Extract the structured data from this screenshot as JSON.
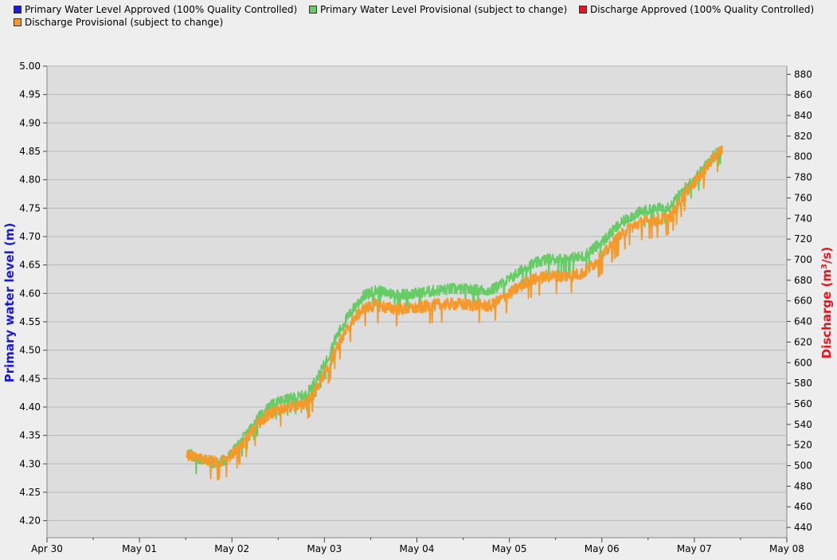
{
  "legend": [
    {
      "label": "Primary Water Level Approved (100% Quality Controlled)",
      "color": "#1a1adc"
    },
    {
      "label": "Primary Water Level Provisional (subject to change)",
      "color": "#66cc66"
    },
    {
      "label": "Discharge Approved (100% Quality Controlled)",
      "color": "#e8141e"
    },
    {
      "label": "Discharge Provisional (subject to change)",
      "color": "#f59a2a"
    }
  ],
  "chart_data": {
    "type": "line",
    "grid": true,
    "plot_background": "#dddddd",
    "y_left": {
      "label": "Primary water level (m)",
      "color": "#1a1adc",
      "range": [
        4.17,
        5.0
      ],
      "ticks": [
        "4.20",
        "4.25",
        "4.30",
        "4.35",
        "4.40",
        "4.45",
        "4.50",
        "4.55",
        "4.60",
        "4.65",
        "4.70",
        "4.75",
        "4.80",
        "4.85",
        "4.90",
        "4.95",
        "5.00"
      ]
    },
    "y_right": {
      "label_prefix": "Discharge (m",
      "label_sup": "3",
      "label_suffix": "/s)",
      "color": "#e8141e",
      "range": [
        430,
        888
      ],
      "ticks": [
        "440",
        "460",
        "480",
        "500",
        "520",
        "540",
        "560",
        "580",
        "600",
        "620",
        "640",
        "660",
        "680",
        "700",
        "720",
        "740",
        "760",
        "780",
        "800",
        "820",
        "840",
        "860",
        "880"
      ]
    },
    "x_axis": {
      "range": [
        "Apr 30",
        "May 08"
      ],
      "ticks": [
        "Apr 30",
        "May 01",
        "May 02",
        "May 03",
        "May 04",
        "May 05",
        "May 06",
        "May 07",
        "May 08"
      ]
    },
    "series": [
      {
        "name": "Primary Water Level Provisional (subject to change)",
        "axis": "left",
        "color": "#66cc66",
        "x_days": [
          1.51,
          1.62,
          1.73,
          1.84,
          1.95,
          2.06,
          2.17,
          2.28,
          2.4,
          2.52,
          2.65,
          2.8,
          2.92,
          3.02,
          3.12,
          3.22,
          3.32,
          3.42,
          3.55,
          3.7,
          3.85,
          4.0,
          4.2,
          4.4,
          4.6,
          4.8,
          5.0,
          5.2,
          5.4,
          5.6,
          5.8,
          6.0,
          6.15,
          6.3,
          6.45,
          6.6,
          6.75,
          6.9,
          7.05,
          7.2,
          7.3
        ],
        "y": [
          4.32,
          4.31,
          4.305,
          4.3,
          4.31,
          4.33,
          4.355,
          4.38,
          4.4,
          4.41,
          4.415,
          4.42,
          4.45,
          4.48,
          4.52,
          4.55,
          4.575,
          4.595,
          4.605,
          4.6,
          4.598,
          4.6,
          4.605,
          4.608,
          4.606,
          4.605,
          4.625,
          4.648,
          4.66,
          4.66,
          4.665,
          4.69,
          4.715,
          4.735,
          4.745,
          4.748,
          4.755,
          4.785,
          4.81,
          4.84,
          4.86
        ]
      },
      {
        "name": "Discharge Provisional (subject to change)",
        "axis": "right",
        "color": "#f59a2a",
        "x_days": [
          1.51,
          1.62,
          1.73,
          1.84,
          1.95,
          2.06,
          2.17,
          2.28,
          2.4,
          2.52,
          2.65,
          2.8,
          2.92,
          3.02,
          3.12,
          3.22,
          3.32,
          3.42,
          3.55,
          3.7,
          3.85,
          4.0,
          4.2,
          4.4,
          4.6,
          4.8,
          5.0,
          5.2,
          5.4,
          5.6,
          5.8,
          6.0,
          6.15,
          6.3,
          6.45,
          6.6,
          6.75,
          6.9,
          7.05,
          7.2,
          7.3
        ],
        "y": [
          511,
          507,
          505,
          503,
          506,
          515,
          527,
          540,
          550,
          555,
          557,
          560,
          575,
          592,
          613,
          628,
          643,
          652,
          656,
          653,
          652,
          653,
          656,
          657,
          656,
          655,
          667,
          679,
          684,
          684,
          687,
          703,
          719,
          731,
          737,
          738,
          742,
          765,
          780,
          798,
          807
        ]
      }
    ]
  }
}
